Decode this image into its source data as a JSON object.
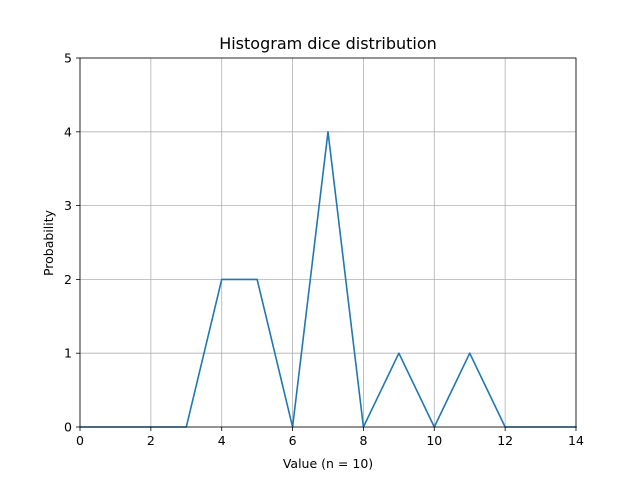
{
  "chart_data": {
    "type": "line",
    "title": "Histogram dice distribution",
    "xlabel": "Value (n = 10)",
    "ylabel": "Probability",
    "xlim": [
      0,
      14
    ],
    "ylim": [
      0,
      5
    ],
    "xticks": [
      0,
      2,
      4,
      6,
      8,
      10,
      12,
      14
    ],
    "yticks": [
      0,
      1,
      2,
      3,
      4,
      5
    ],
    "grid": true,
    "series": [
      {
        "color": "#1f77b4",
        "x": [
          0,
          1,
          2,
          3,
          4,
          5,
          6,
          7,
          8,
          9,
          10,
          11,
          12,
          13,
          14
        ],
        "y": [
          0,
          0,
          0,
          0,
          2,
          2,
          0,
          4,
          0,
          1,
          0,
          1,
          0,
          0,
          0
        ]
      }
    ]
  }
}
